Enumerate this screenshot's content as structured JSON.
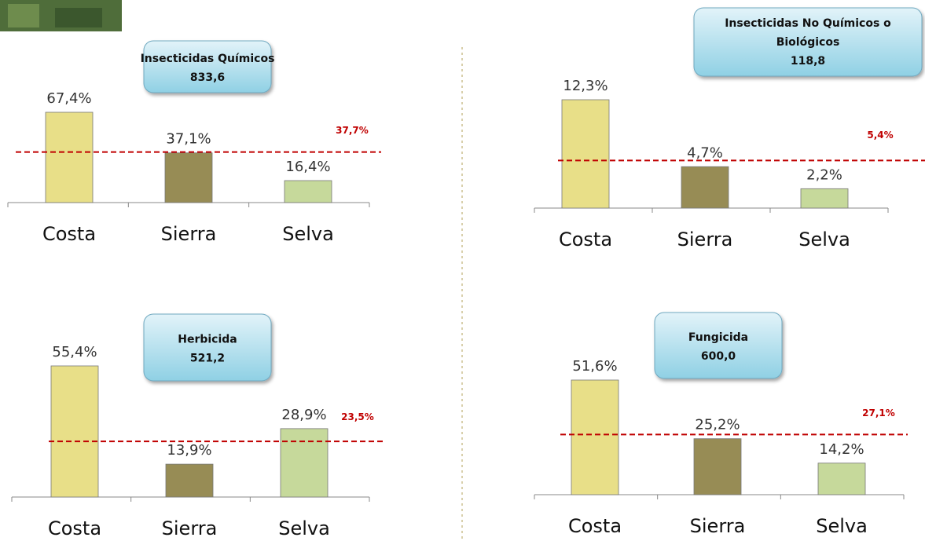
{
  "chart_data": [
    {
      "type": "bar",
      "title": "Insecticidas Químicos",
      "subtitle": "833,6",
      "categories": [
        "Costa",
        "Sierra",
        "Selva"
      ],
      "values": [
        67.4,
        37.1,
        16.4
      ],
      "value_labels": [
        "67,4%",
        "37,1%",
        "16,4%"
      ],
      "colors": [
        "#e8df88",
        "#978c55",
        "#c6d99b"
      ],
      "reference": {
        "value": 37.7,
        "label": "37,7%",
        "color": "#c00000"
      }
    },
    {
      "type": "bar",
      "title": "Insecticidas No Químicos o Biológicos",
      "subtitle": "118,8",
      "categories": [
        "Costa",
        "Sierra",
        "Selva"
      ],
      "values": [
        12.3,
        4.7,
        2.2
      ],
      "value_labels": [
        "12,3%",
        "4,7%",
        "2,2%"
      ],
      "colors": [
        "#e8df88",
        "#978c55",
        "#c6d99b"
      ],
      "reference": {
        "value": 5.4,
        "label": "5,4%",
        "color": "#c00000"
      }
    },
    {
      "type": "bar",
      "title": "Herbicida",
      "subtitle": "521,2",
      "categories": [
        "Costa",
        "Sierra",
        "Selva"
      ],
      "values": [
        55.4,
        13.9,
        28.9
      ],
      "value_labels": [
        "55,4%",
        "13,9%",
        "28,9%"
      ],
      "colors": [
        "#e8df88",
        "#978c55",
        "#c6d99b"
      ],
      "reference": {
        "value": 23.5,
        "label": "23,5%",
        "color": "#c00000"
      }
    },
    {
      "type": "bar",
      "title": "Fungicida",
      "subtitle": "600,0",
      "categories": [
        "Costa",
        "Sierra",
        "Selva"
      ],
      "values": [
        51.6,
        25.2,
        14.2
      ],
      "value_labels": [
        "51,6%",
        "25,2%",
        "14,2%"
      ],
      "colors": [
        "#e8df88",
        "#978c55",
        "#c6d99b"
      ],
      "reference": {
        "value": 27.1,
        "label": "27,1%",
        "color": "#c00000"
      }
    }
  ]
}
